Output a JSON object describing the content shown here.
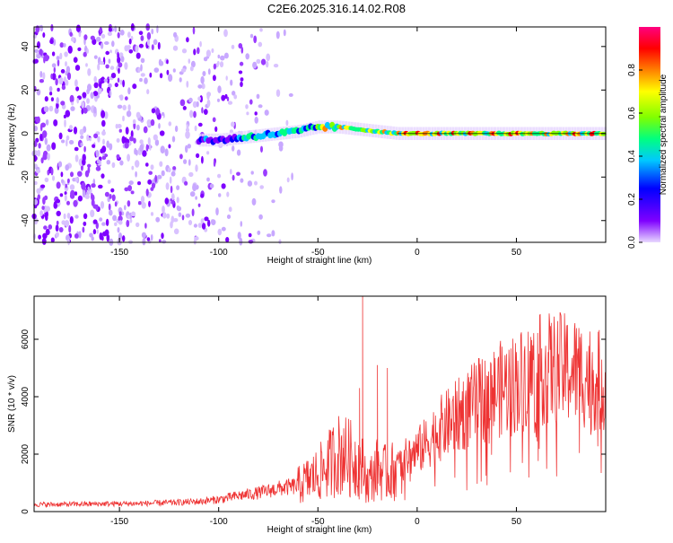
{
  "title": "C2E6.2025.316.14.02.R08",
  "chart_data": [
    {
      "type": "heatmap",
      "xlabel": "Height of straight line (km)",
      "ylabel": "Frequency (Hz)",
      "xlim": [
        -193,
        95
      ],
      "ylim": [
        -50,
        49
      ],
      "x_ticks": [
        -150,
        -100,
        -50,
        0,
        50
      ],
      "y_ticks": [
        -40,
        -20,
        0,
        20,
        40
      ],
      "x_tick_labels": [
        "-150",
        "-100",
        "-50",
        "0",
        "50"
      ],
      "y_tick_labels": [
        "-40",
        "-20",
        "0",
        "20",
        "40"
      ],
      "colorbar": {
        "label": "Normalized spectral amplitude",
        "range": [
          0,
          1
        ],
        "ticks": [
          0,
          0.2,
          0.4,
          0.6,
          0.8
        ],
        "tick_labels": [
          "0.0",
          "0.2",
          "0.4",
          "0.6",
          "0.8"
        ],
        "colors": [
          "#e8d8ff",
          "#7f00ff",
          "#0000ff",
          "#00c8ff",
          "#00ff80",
          "#80ff00",
          "#ffff00",
          "#ff8000",
          "#ff0000",
          "#ff0080"
        ]
      },
      "noise_region_x": [
        -193,
        -60
      ],
      "signal_ridge": [
        {
          "x": -110,
          "y": -3
        },
        {
          "x": -100,
          "y": -3
        },
        {
          "x": -90,
          "y": -2
        },
        {
          "x": -80,
          "y": -1
        },
        {
          "x": -70,
          "y": 0
        },
        {
          "x": -60,
          "y": 1
        },
        {
          "x": -50,
          "y": 3
        },
        {
          "x": -40,
          "y": 3
        },
        {
          "x": -30,
          "y": 2
        },
        {
          "x": -20,
          "y": 1
        },
        {
          "x": -10,
          "y": 0
        },
        {
          "x": 0,
          "y": 0
        },
        {
          "x": 20,
          "y": 0
        },
        {
          "x": 40,
          "y": 0
        },
        {
          "x": 60,
          "y": 0
        },
        {
          "x": 80,
          "y": 0
        },
        {
          "x": 95,
          "y": 0
        }
      ]
    },
    {
      "type": "line",
      "xlabel": "Height of straight line (km)",
      "ylabel": "SNR (10 * v/v)",
      "xlim": [
        -193,
        95
      ],
      "ylim": [
        0,
        7500
      ],
      "x_ticks": [
        -150,
        -100,
        -50,
        0,
        50
      ],
      "y_ticks": [
        0,
        2000,
        4000,
        6000
      ],
      "x_tick_labels": [
        "-150",
        "-100",
        "-50",
        "0",
        "50"
      ],
      "y_tick_labels": [
        "0",
        "2000",
        "4000",
        "6000"
      ],
      "series_color": "#ee3333",
      "x": [
        -193,
        -180,
        -160,
        -140,
        -120,
        -110,
        -100,
        -90,
        -80,
        -70,
        -60,
        -55,
        -50,
        -45,
        -40,
        -35,
        -30,
        -27,
        -25,
        -20,
        -15,
        -10,
        -5,
        0,
        5,
        10,
        20,
        30,
        40,
        50,
        60,
        70,
        80,
        90,
        95
      ],
      "y": [
        250,
        250,
        270,
        280,
        320,
        350,
        420,
        550,
        650,
        800,
        900,
        1100,
        1300,
        1600,
        2000,
        1900,
        1700,
        1500,
        1000,
        1500,
        1300,
        1500,
        1900,
        2100,
        2400,
        2800,
        3300,
        3800,
        4200,
        4500,
        4900,
        5000,
        4900,
        4600,
        4400
      ],
      "peaks": [
        {
          "x": -27.5,
          "y": 7500
        },
        {
          "x": -29,
          "y": 4300
        },
        {
          "x": -20,
          "y": 5100
        },
        {
          "x": -15,
          "y": 5000
        },
        {
          "x": -37,
          "y": 2900
        }
      ]
    }
  ]
}
